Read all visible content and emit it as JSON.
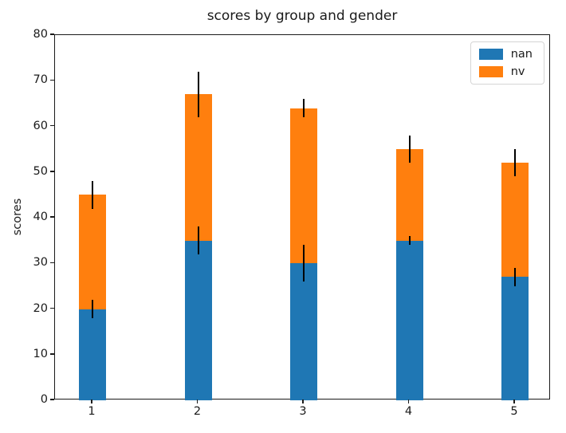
{
  "chart_data": {
    "type": "bar",
    "variant": "stacked-vertical-with-error-bars",
    "title": "scores by group and gender",
    "xlabel": "",
    "ylabel": "scores",
    "categories": [
      "1",
      "2",
      "3",
      "4",
      "5"
    ],
    "series": [
      {
        "name": "nan",
        "color": "#1f77b4",
        "values": [
          20,
          35,
          30,
          35,
          27
        ],
        "errors": [
          2,
          3,
          4,
          1,
          2
        ]
      },
      {
        "name": "nv",
        "color": "#ff7f0e",
        "values": [
          25,
          32,
          34,
          20,
          25
        ],
        "errors": [
          3,
          5,
          2,
          3,
          3
        ]
      }
    ],
    "stacked_totals": [
      45,
      67,
      64,
      55,
      52
    ],
    "ylim": [
      0,
      80
    ],
    "yticks": [
      0,
      10,
      20,
      30,
      40,
      50,
      60,
      70,
      80
    ],
    "grid": false,
    "legend_position": "upper right",
    "error_bar_color": "#000000",
    "axis_color": "#1a1a1a",
    "background_color": "#ffffff"
  }
}
